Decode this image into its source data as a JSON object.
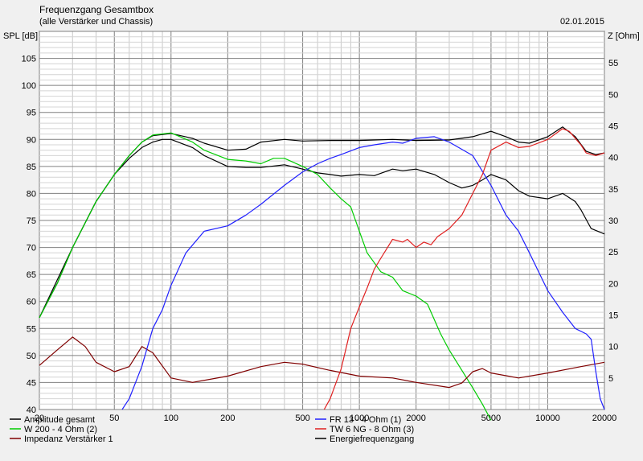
{
  "header": {
    "title": "Frequenzgang Gesamtbox",
    "subtitle": "(alle Verstärker und Chassis)",
    "date": "02.01.2015"
  },
  "chart_data": {
    "type": "line",
    "title": "Frequenzgang Gesamtbox",
    "ylabel_left": "SPL [dB]",
    "ylabel_right": "Z [Ohm]",
    "x_scale": "log",
    "xlim": [
      20,
      20000
    ],
    "ylim_left": [
      40,
      110
    ],
    "ylim_right": [
      0,
      60
    ],
    "grid": true,
    "legend_position": "bottom",
    "x_ticks": [
      "20",
      "50",
      "100",
      "200",
      "500",
      "1000",
      "2000",
      "5000",
      "10000",
      "20000"
    ],
    "x_tick_values": [
      20,
      50,
      100,
      200,
      500,
      1000,
      2000,
      5000,
      10000,
      20000
    ],
    "y_left_ticks": [
      "40",
      "45",
      "50",
      "55",
      "60",
      "65",
      "70",
      "75",
      "80",
      "85",
      "90",
      "95",
      "100",
      "105"
    ],
    "y_left_tick_values": [
      40,
      45,
      50,
      55,
      60,
      65,
      70,
      75,
      80,
      85,
      90,
      95,
      100,
      105
    ],
    "y_right_ticks": [
      "5",
      "10",
      "15",
      "20",
      "25",
      "30",
      "35",
      "40",
      "45",
      "50",
      "55"
    ],
    "y_right_tick_values": [
      5,
      10,
      15,
      20,
      25,
      30,
      35,
      40,
      45,
      50,
      55
    ],
    "series": [
      {
        "name": "Amplitude gesamt",
        "color": "#000000",
        "axis": "left",
        "points": [
          [
            20,
            57
          ],
          [
            25,
            63.5
          ],
          [
            30,
            70
          ],
          [
            40,
            78.5
          ],
          [
            50,
            83.5
          ],
          [
            60,
            87
          ],
          [
            70,
            89.5
          ],
          [
            80,
            90.7
          ],
          [
            100,
            91.1
          ],
          [
            130,
            90.2
          ],
          [
            150,
            89.3
          ],
          [
            200,
            88
          ],
          [
            250,
            88.2
          ],
          [
            300,
            89.5
          ],
          [
            400,
            90
          ],
          [
            500,
            89.7
          ],
          [
            700,
            89.8
          ],
          [
            1000,
            89.8
          ],
          [
            1500,
            90
          ],
          [
            2000,
            89.8
          ],
          [
            3000,
            89.9
          ],
          [
            4000,
            90.5
          ],
          [
            5000,
            91.5
          ],
          [
            6000,
            90.5
          ],
          [
            7000,
            89.5
          ],
          [
            8000,
            89.3
          ],
          [
            10000,
            90.5
          ],
          [
            12000,
            92.3
          ],
          [
            14000,
            90.5
          ],
          [
            16000,
            87.8
          ],
          [
            18000,
            87.2
          ],
          [
            20000,
            87.5
          ]
        ]
      },
      {
        "name": "W 200 - 4 Ohm (2)",
        "color": "#00cc00",
        "axis": "left",
        "points": [
          [
            20,
            57
          ],
          [
            25,
            63.5
          ],
          [
            30,
            70
          ],
          [
            40,
            78.5
          ],
          [
            50,
            83.5
          ],
          [
            60,
            87
          ],
          [
            70,
            89.5
          ],
          [
            80,
            90.8
          ],
          [
            100,
            91.2
          ],
          [
            130,
            89.5
          ],
          [
            150,
            88
          ],
          [
            200,
            86.3
          ],
          [
            250,
            86
          ],
          [
            300,
            85.5
          ],
          [
            350,
            86.5
          ],
          [
            400,
            86.5
          ],
          [
            500,
            85
          ],
          [
            600,
            83.5
          ],
          [
            700,
            81
          ],
          [
            800,
            79
          ],
          [
            900,
            77.5
          ],
          [
            1000,
            73
          ],
          [
            1100,
            69
          ],
          [
            1300,
            65.5
          ],
          [
            1500,
            64.5
          ],
          [
            1700,
            62
          ],
          [
            2000,
            61
          ],
          [
            2300,
            59.5
          ],
          [
            2700,
            54
          ],
          [
            3000,
            51
          ],
          [
            4000,
            44
          ],
          [
            4500,
            41
          ],
          [
            5000,
            38
          ]
        ]
      },
      {
        "name": "Impedanz Verstärker 1",
        "color": "#800000",
        "axis": "right",
        "points": [
          [
            20,
            7
          ],
          [
            25,
            9.5
          ],
          [
            30,
            11.5
          ],
          [
            35,
            10
          ],
          [
            40,
            7.5
          ],
          [
            50,
            6
          ],
          [
            60,
            6.8
          ],
          [
            70,
            10
          ],
          [
            80,
            9
          ],
          [
            100,
            5
          ],
          [
            130,
            4.3
          ],
          [
            200,
            5.3
          ],
          [
            300,
            6.8
          ],
          [
            400,
            7.5
          ],
          [
            500,
            7.2
          ],
          [
            700,
            6.2
          ],
          [
            1000,
            5.3
          ],
          [
            1500,
            5
          ],
          [
            2000,
            4.3
          ],
          [
            3000,
            3.5
          ],
          [
            3500,
            4.2
          ],
          [
            4000,
            6
          ],
          [
            4500,
            6.5
          ],
          [
            5000,
            5.8
          ],
          [
            7000,
            5
          ],
          [
            10000,
            5.8
          ],
          [
            15000,
            6.8
          ],
          [
            20000,
            7.5
          ]
        ]
      },
      {
        "name": "FR 13 - 4 Ohm (1)",
        "color": "#2020ff",
        "axis": "left",
        "points": [
          [
            55,
            40
          ],
          [
            60,
            42
          ],
          [
            70,
            48
          ],
          [
            80,
            55
          ],
          [
            90,
            58.5
          ],
          [
            100,
            63
          ],
          [
            120,
            69
          ],
          [
            150,
            73
          ],
          [
            200,
            74
          ],
          [
            250,
            76
          ],
          [
            300,
            78
          ],
          [
            400,
            81.5
          ],
          [
            500,
            84
          ],
          [
            600,
            85.5
          ],
          [
            700,
            86.5
          ],
          [
            800,
            87.2
          ],
          [
            1000,
            88.5
          ],
          [
            1200,
            89
          ],
          [
            1500,
            89.5
          ],
          [
            1700,
            89.3
          ],
          [
            2000,
            90.2
          ],
          [
            2500,
            90.5
          ],
          [
            3000,
            89.5
          ],
          [
            4000,
            87
          ],
          [
            5000,
            81.5
          ],
          [
            6000,
            76
          ],
          [
            7000,
            73
          ],
          [
            8000,
            69
          ],
          [
            10000,
            62
          ],
          [
            12000,
            58
          ],
          [
            14000,
            55
          ],
          [
            16000,
            54
          ],
          [
            17000,
            53
          ],
          [
            18000,
            47
          ],
          [
            19000,
            42
          ],
          [
            20000,
            40
          ]
        ]
      },
      {
        "name": "TW 6 NG - 8 Ohm (3)",
        "color": "#e02020",
        "axis": "left",
        "points": [
          [
            650,
            40
          ],
          [
            700,
            42
          ],
          [
            800,
            47.5
          ],
          [
            900,
            55
          ],
          [
            1000,
            59
          ],
          [
            1100,
            62.5
          ],
          [
            1200,
            66
          ],
          [
            1300,
            68
          ],
          [
            1500,
            71.5
          ],
          [
            1700,
            71
          ],
          [
            1800,
            71.5
          ],
          [
            2000,
            70
          ],
          [
            2200,
            71
          ],
          [
            2400,
            70.5
          ],
          [
            2600,
            72
          ],
          [
            3000,
            73.5
          ],
          [
            3500,
            76
          ],
          [
            4000,
            80
          ],
          [
            4500,
            83.5
          ],
          [
            5000,
            88
          ],
          [
            6000,
            89.5
          ],
          [
            7000,
            88.5
          ],
          [
            8000,
            88.7
          ],
          [
            10000,
            90
          ],
          [
            12000,
            92
          ],
          [
            13000,
            91.5
          ],
          [
            15000,
            89
          ],
          [
            16000,
            87.5
          ],
          [
            18000,
            87
          ],
          [
            20000,
            87.5
          ]
        ]
      },
      {
        "name": "Energiefrequenzgang",
        "color": "#000000",
        "axis": "left",
        "points": [
          [
            20,
            57
          ],
          [
            30,
            70
          ],
          [
            40,
            78.5
          ],
          [
            50,
            83.5
          ],
          [
            60,
            86.5
          ],
          [
            70,
            88.5
          ],
          [
            80,
            89.5
          ],
          [
            90,
            90
          ],
          [
            100,
            90
          ],
          [
            130,
            88.5
          ],
          [
            150,
            87
          ],
          [
            200,
            85
          ],
          [
            250,
            84.8
          ],
          [
            300,
            84.8
          ],
          [
            400,
            85.3
          ],
          [
            500,
            84.5
          ],
          [
            600,
            83.8
          ],
          [
            700,
            83.5
          ],
          [
            800,
            83.2
          ],
          [
            1000,
            83.5
          ],
          [
            1200,
            83.3
          ],
          [
            1500,
            84.5
          ],
          [
            1700,
            84.2
          ],
          [
            2000,
            84.5
          ],
          [
            2500,
            83.5
          ],
          [
            3000,
            82
          ],
          [
            3500,
            81
          ],
          [
            4000,
            81.5
          ],
          [
            4500,
            82.5
          ],
          [
            5000,
            83.5
          ],
          [
            6000,
            82.5
          ],
          [
            7000,
            80.5
          ],
          [
            8000,
            79.5
          ],
          [
            10000,
            79
          ],
          [
            12000,
            80
          ],
          [
            14000,
            78.5
          ],
          [
            15000,
            77
          ],
          [
            17000,
            73.5
          ],
          [
            20000,
            72.5
          ]
        ]
      }
    ]
  }
}
